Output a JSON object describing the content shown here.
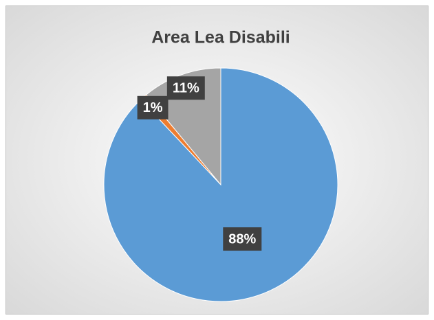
{
  "chart_data": {
    "type": "pie",
    "title": "Area Lea Disabili",
    "values": [
      88,
      1,
      11
    ],
    "value_labels": [
      "88%",
      "1%",
      "11%"
    ],
    "colors": [
      "#5b9bd5",
      "#ed7d31",
      "#a5a5a5"
    ]
  }
}
